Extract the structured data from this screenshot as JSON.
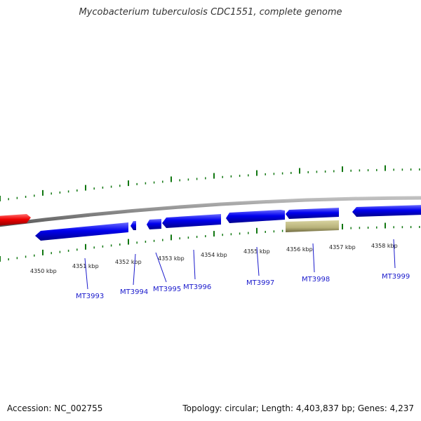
{
  "title": "Mycobacterium tuberculosis CDC1551, complete genome",
  "footer": {
    "accession": "Accession: NC_002755",
    "summary": "Topology: circular; Length: 4,403,837 bp; Genes: 4,237"
  },
  "colors": {
    "forward_gene": "#0000ee",
    "reverse_gene": "#ee0000",
    "other_feature": "#b8b27a",
    "backbone": "#888888",
    "ticks": "#117711",
    "gene_label": "#1a1acc"
  },
  "position_labels": [
    "4350 kbp",
    "4351 kbp",
    "4352 kbp",
    "4353 kbp",
    "4354 kbp",
    "4355 kbp",
    "4356 kbp",
    "4357 kbp",
    "4358 kbp"
  ],
  "gene_labels": [
    "MT3993",
    "MT3994",
    "MT3995",
    "MT3996",
    "MT3997",
    "MT3998",
    "MT3999"
  ]
}
